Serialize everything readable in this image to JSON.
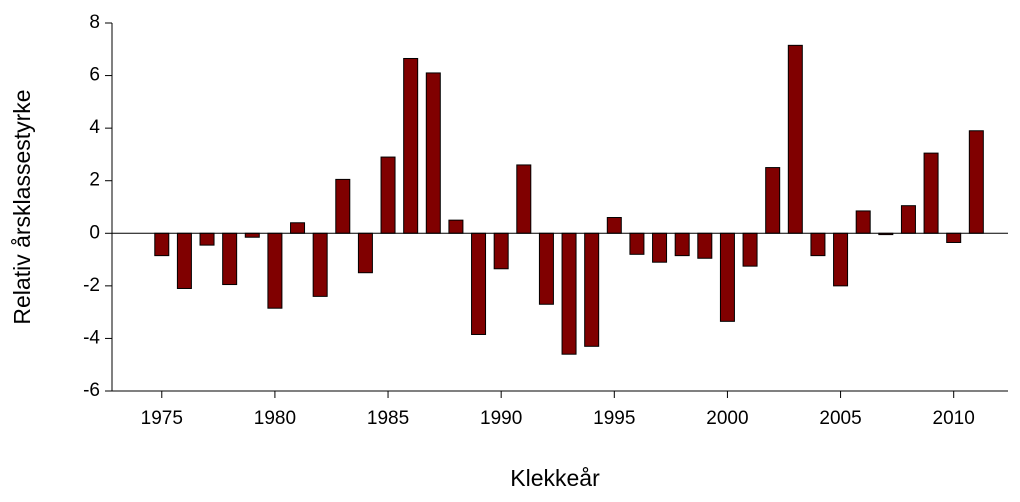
{
  "chart_data": {
    "type": "bar",
    "x_label": "Klekkeår",
    "y_label": "Relativ årsklassestyrke",
    "x": [
      1975,
      1976,
      1977,
      1978,
      1979,
      1980,
      1981,
      1982,
      1983,
      1984,
      1985,
      1986,
      1987,
      1988,
      1989,
      1990,
      1991,
      1992,
      1993,
      1994,
      1995,
      1996,
      1997,
      1998,
      1999,
      2000,
      2001,
      2002,
      2003,
      2004,
      2005,
      2006,
      2007,
      2008,
      2009,
      2010,
      2011
    ],
    "values": [
      -0.85,
      -2.1,
      -0.45,
      -1.95,
      -0.15,
      -2.85,
      0.4,
      -2.4,
      2.05,
      -1.5,
      2.9,
      6.65,
      6.1,
      0.5,
      -3.85,
      -1.35,
      2.6,
      -2.7,
      -4.6,
      -4.3,
      0.6,
      -0.8,
      -1.1,
      -0.85,
      -0.95,
      -3.35,
      -1.25,
      2.5,
      7.15,
      -0.85,
      -2.0,
      0.85,
      -0.05,
      1.05,
      3.05,
      -0.35,
      3.9
    ],
    "color": "#800000",
    "xlim": [
      1972.8,
      2012.4
    ],
    "xticks": [
      1975,
      1980,
      1985,
      1990,
      1995,
      2000,
      2005,
      2010
    ],
    "ylim": [
      -6,
      8
    ],
    "yticks": [
      -6,
      -4,
      -2,
      0,
      2,
      4,
      6,
      8
    ]
  }
}
